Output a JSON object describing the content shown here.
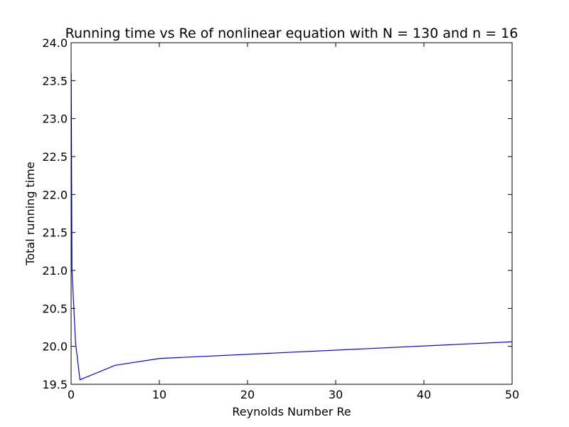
{
  "chart_data": {
    "type": "line",
    "title": "Running time vs Re of nonlinear equation with N = 130 and n = 16",
    "xlabel": "Reynolds Number Re",
    "ylabel": "Total running time",
    "xlim": [
      0,
      50
    ],
    "ylim": [
      19.5,
      24.0
    ],
    "x_ticks": [
      "0",
      "10",
      "20",
      "30",
      "40",
      "50"
    ],
    "y_ticks": [
      "19.5",
      "20.0",
      "20.5",
      "21.0",
      "21.5",
      "22.0",
      "22.5",
      "23.0",
      "23.5",
      "24.0"
    ],
    "grid": false,
    "legend": "none",
    "series": [
      {
        "color": "#0000ff",
        "x": [
          0.01,
          0.1,
          0.5,
          1,
          5,
          10,
          50
        ],
        "y": [
          23.6,
          21.0,
          20.05,
          19.56,
          19.75,
          19.84,
          20.06
        ]
      }
    ]
  }
}
